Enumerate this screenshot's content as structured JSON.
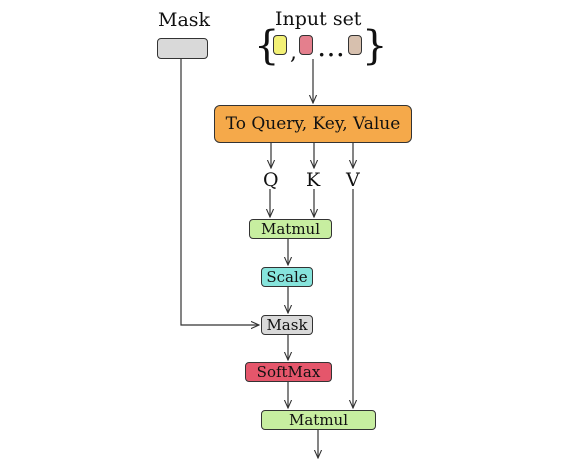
{
  "labels": {
    "mask_input": "Mask",
    "input_set": "Input set",
    "q": "Q",
    "k": "K",
    "v": "V",
    "comma": ",",
    "ellipsis": "…",
    "brace_open": "{",
    "brace_close": "}"
  },
  "nodes": {
    "to_qkv": "To Query, Key, Value",
    "matmul_1": "Matmul",
    "scale": "Scale",
    "mask": "Mask",
    "softmax": "SoftMax",
    "matmul_2": "Matmul"
  },
  "colors": {
    "mask_input": "#d9d9d9",
    "to_qkv": "#f5a94a",
    "matmul": "#c7eea0",
    "scale": "#86e4dc",
    "mask": "#d9d9d9",
    "softmax": "#e5566b",
    "token_1": "#f3f176",
    "token_2": "#e47f8d",
    "token_3": "#d7c0ae",
    "line": "#333333"
  }
}
